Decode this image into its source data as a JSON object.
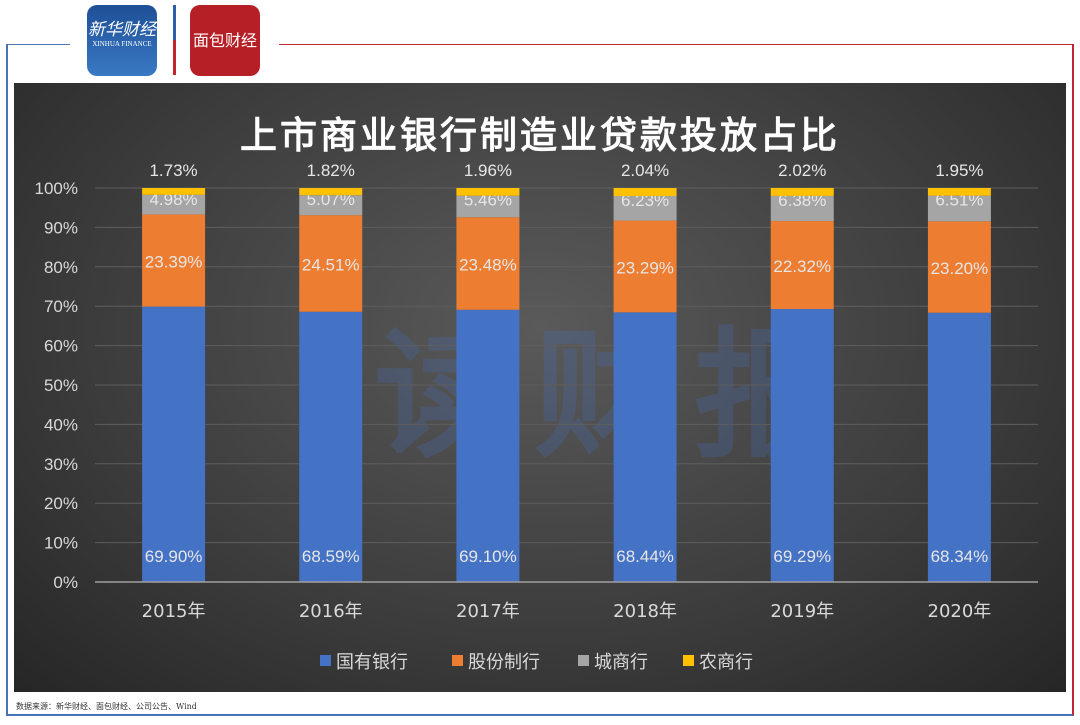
{
  "header": {
    "logo_left_cn": "新华财经",
    "logo_left_en": "XINHUA FINANCE",
    "logo_right": "面包财经"
  },
  "watermark": "读财报",
  "source": "数据来源：新华财经、面包财经、公司公告、Wind",
  "colors": {
    "国有银行": "#4472c4",
    "股份制行": "#ed7d31",
    "城商行": "#a5a5a5",
    "农商行": "#ffc000"
  },
  "chart_data": {
    "type": "bar",
    "stacked": true,
    "title": "上市商业银行制造业贷款投放占比",
    "categories": [
      "2015年",
      "2016年",
      "2017年",
      "2018年",
      "2019年",
      "2020年"
    ],
    "ylim": [
      0,
      100
    ],
    "yticks": [
      "0%",
      "10%",
      "20%",
      "30%",
      "40%",
      "50%",
      "60%",
      "70%",
      "80%",
      "90%",
      "100%"
    ],
    "grid": true,
    "legend": "bottom",
    "series": [
      {
        "name": "国有银行",
        "values": [
          69.9,
          68.59,
          69.1,
          68.44,
          69.29,
          68.34
        ],
        "labels": [
          "69.90%",
          "68.59%",
          "69.10%",
          "68.44%",
          "69.29%",
          "68.34%"
        ]
      },
      {
        "name": "股份制行",
        "values": [
          23.39,
          24.51,
          23.48,
          23.29,
          22.32,
          23.2
        ],
        "labels": [
          "23.39%",
          "24.51%",
          "23.48%",
          "23.29%",
          "22.32%",
          "23.20%"
        ]
      },
      {
        "name": "城商行",
        "values": [
          4.98,
          5.07,
          5.46,
          6.23,
          6.38,
          6.51
        ],
        "labels": [
          "4.98%",
          "5.07%",
          "5.46%",
          "6.23%",
          "6.38%",
          "6.51%"
        ]
      },
      {
        "name": "农商行",
        "values": [
          1.73,
          1.82,
          1.96,
          2.04,
          2.02,
          1.95
        ],
        "labels": [
          "1.73%",
          "1.82%",
          "1.96%",
          "2.04%",
          "2.02%",
          "1.95%"
        ]
      }
    ]
  }
}
